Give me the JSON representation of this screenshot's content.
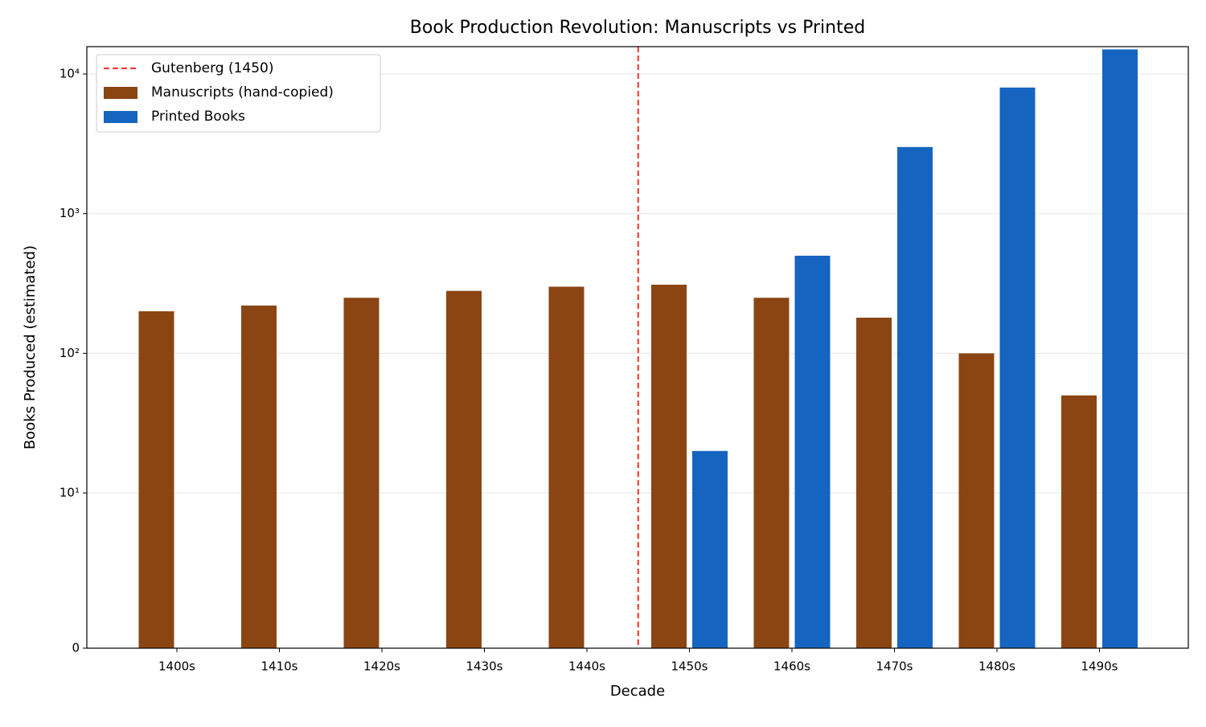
{
  "chart_data": {
    "type": "bar",
    "title": "Book Production Revolution: Manuscripts vs Printed",
    "x_label": "Decade",
    "y_label": "Books Produced (estimated)",
    "categories": [
      "1400s",
      "1410s",
      "1420s",
      "1430s",
      "1440s",
      "1450s",
      "1460s",
      "1470s",
      "1480s",
      "1490s"
    ],
    "series": [
      {
        "name": "Manuscripts (hand-copied)",
        "color": "#8b4513",
        "values": [
          200,
          220,
          250,
          280,
          300,
          310,
          250,
          180,
          100,
          50
        ]
      },
      {
        "name": "Printed Books",
        "color": "#1565c0",
        "values": [
          null,
          null,
          null,
          null,
          null,
          20,
          500,
          3000,
          8000,
          15000
        ]
      }
    ],
    "y_scale": "symlog",
    "linthresh": 10,
    "ylim": [
      0,
      15700
    ],
    "yticks": [
      0,
      {
        "value": 10,
        "label": "10¹"
      },
      {
        "value": 100,
        "label": "10²"
      },
      {
        "value": 1000,
        "label": "10³"
      },
      {
        "value": 10000,
        "label": "10⁴"
      }
    ],
    "grid": true,
    "legend": "upper left",
    "vline": {
      "label": "Gutenberg (1450)",
      "x": 4.5,
      "color": "#f04040"
    }
  }
}
